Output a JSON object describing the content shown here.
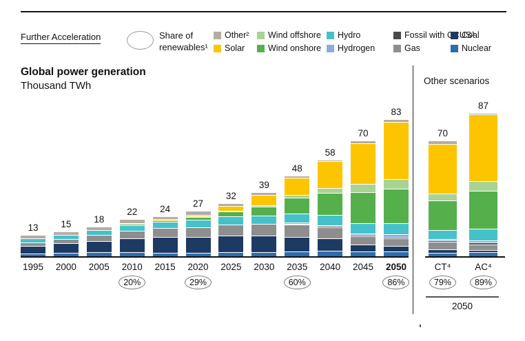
{
  "header": {
    "scenario_label": "Further Acceleration",
    "share_marker_label": "Share of renewables¹"
  },
  "legend": {
    "items": [
      {
        "label": "Other²",
        "color": "#b4aba3"
      },
      {
        "label": "Wind offshore",
        "color": "#a9d393"
      },
      {
        "label": "Hydro",
        "color": "#45c1ca"
      },
      {
        "label": "Fossil with CCUS³",
        "color": "#4a4a4a"
      },
      {
        "label": "Coal",
        "color": "#1d3a63"
      },
      {
        "label": "Solar",
        "color": "#fdc500"
      },
      {
        "label": "Wind onshore",
        "color": "#55b04c"
      },
      {
        "label": "Hydrogen",
        "color": "#8faadc"
      },
      {
        "label": "Gas",
        "color": "#8e8e8e"
      },
      {
        "label": "Nuclear",
        "color": "#2e6cae"
      }
    ]
  },
  "main_chart": {
    "title": "Global power generation",
    "subtitle": "Thousand TWh"
  },
  "scenarios_panel": {
    "title": "Other scenarios",
    "group_label": "2050"
  },
  "chart_data": [
    {
      "type": "bar",
      "stacked": true,
      "panel": "Further Acceleration",
      "title": "Global power generation",
      "ylabel": "Thousand TWh",
      "categories": [
        "1995",
        "2000",
        "2005",
        "2010",
        "2015",
        "2020",
        "2025",
        "2030",
        "2035",
        "2040",
        "2045",
        "2050"
      ],
      "emphasis": [
        "2050"
      ],
      "totals": [
        13,
        15,
        18,
        22,
        24,
        27,
        32,
        39,
        48,
        58,
        70,
        83
      ],
      "series": [
        {
          "name": "Nuclear",
          "color": "#2e6cae",
          "values": [
            2.3,
            2.6,
            2.8,
            2.8,
            2.5,
            2.7,
            2.9,
            3.1,
            3.3,
            3.6,
            3.4,
            3.5
          ]
        },
        {
          "name": "Coal",
          "color": "#1d3a63",
          "values": [
            4.6,
            5.6,
            7.0,
            8.5,
            9.5,
            9.3,
            10.0,
            9.8,
            9.0,
            7.5,
            4.3,
            3.0
          ]
        },
        {
          "name": "Gas",
          "color": "#8e8e8e",
          "values": [
            2.0,
            2.6,
            3.5,
            4.7,
            5.5,
            6.2,
            6.8,
            7.0,
            7.2,
            7.0,
            5.0,
            5.0
          ]
        },
        {
          "name": "Fossil with CCUS",
          "color": "#4a4a4a",
          "values": [
            0,
            0,
            0,
            0,
            0,
            0,
            0,
            0,
            0.1,
            0.2,
            0.3,
            0.5
          ]
        },
        {
          "name": "Hydrogen",
          "color": "#8faadc",
          "values": [
            0,
            0,
            0,
            0,
            0,
            0,
            0,
            0,
            0.2,
            0.5,
            1.0,
            1.5
          ]
        },
        {
          "name": "Hydro",
          "color": "#45c1ca",
          "values": [
            2.5,
            2.6,
            2.9,
            3.4,
            4.0,
            4.4,
            4.8,
            5.2,
            5.6,
            6.0,
            6.4,
            7.0
          ]
        },
        {
          "name": "Wind onshore",
          "color": "#55b04c",
          "values": [
            0,
            0,
            0,
            0.4,
            0.7,
            1.6,
            3.0,
            5.5,
            9.6,
            13.5,
            18.5,
            21.0
          ]
        },
        {
          "name": "Wind offshore",
          "color": "#a9d393",
          "values": [
            0,
            0,
            0,
            0,
            0,
            0.1,
            0.2,
            0.8,
            1.8,
            3.2,
            5.0,
            5.5
          ]
        },
        {
          "name": "Solar",
          "color": "#fdc500",
          "values": [
            0,
            0,
            0,
            0.1,
            0.3,
            0.9,
            2.8,
            6.3,
            10.4,
            16.0,
            25.0,
            35.0
          ]
        },
        {
          "name": "Other",
          "color": "#b4aba3",
          "values": [
            1.6,
            1.6,
            1.8,
            2.1,
            1.5,
            1.8,
            1.5,
            1.3,
            0.8,
            0.5,
            1.1,
            1.0
          ]
        }
      ],
      "share_of_renewables": {
        "2010": "20%",
        "2020": "29%",
        "2035": "60%",
        "2050": "86%"
      }
    },
    {
      "type": "bar",
      "stacked": true,
      "panel": "Other scenarios",
      "title": "Other scenarios",
      "ylabel": "Thousand TWh",
      "categories": [
        "CT⁴",
        "AC⁴"
      ],
      "emphasis": [],
      "totals": [
        70,
        87
      ],
      "group_label": "2050",
      "series": [
        {
          "name": "Nuclear",
          "color": "#2e6cae",
          "values": [
            2.6,
            3.0
          ]
        },
        {
          "name": "Coal",
          "color": "#1d3a63",
          "values": [
            2.2,
            1.3
          ]
        },
        {
          "name": "Gas",
          "color": "#8e8e8e",
          "values": [
            4.6,
            3.4
          ]
        },
        {
          "name": "Fossil with CCUS",
          "color": "#4a4a4a",
          "values": [
            0.4,
            0.9
          ]
        },
        {
          "name": "Hydrogen",
          "color": "#8faadc",
          "values": [
            0.8,
            1.6
          ]
        },
        {
          "name": "Hydro",
          "color": "#45c1ca",
          "values": [
            5.6,
            7.0
          ]
        },
        {
          "name": "Wind onshore",
          "color": "#55b04c",
          "values": [
            17.8,
            23.0
          ]
        },
        {
          "name": "Wind offshore",
          "color": "#a9d393",
          "values": [
            4.5,
            6.0
          ]
        },
        {
          "name": "Solar",
          "color": "#fdc500",
          "values": [
            30.0,
            40.3
          ]
        },
        {
          "name": "Other",
          "color": "#b4aba3",
          "values": [
            1.5,
            0.5
          ]
        }
      ],
      "share_of_renewables": {
        "CT⁴": "79%",
        "AC⁴": "89%"
      }
    }
  ]
}
